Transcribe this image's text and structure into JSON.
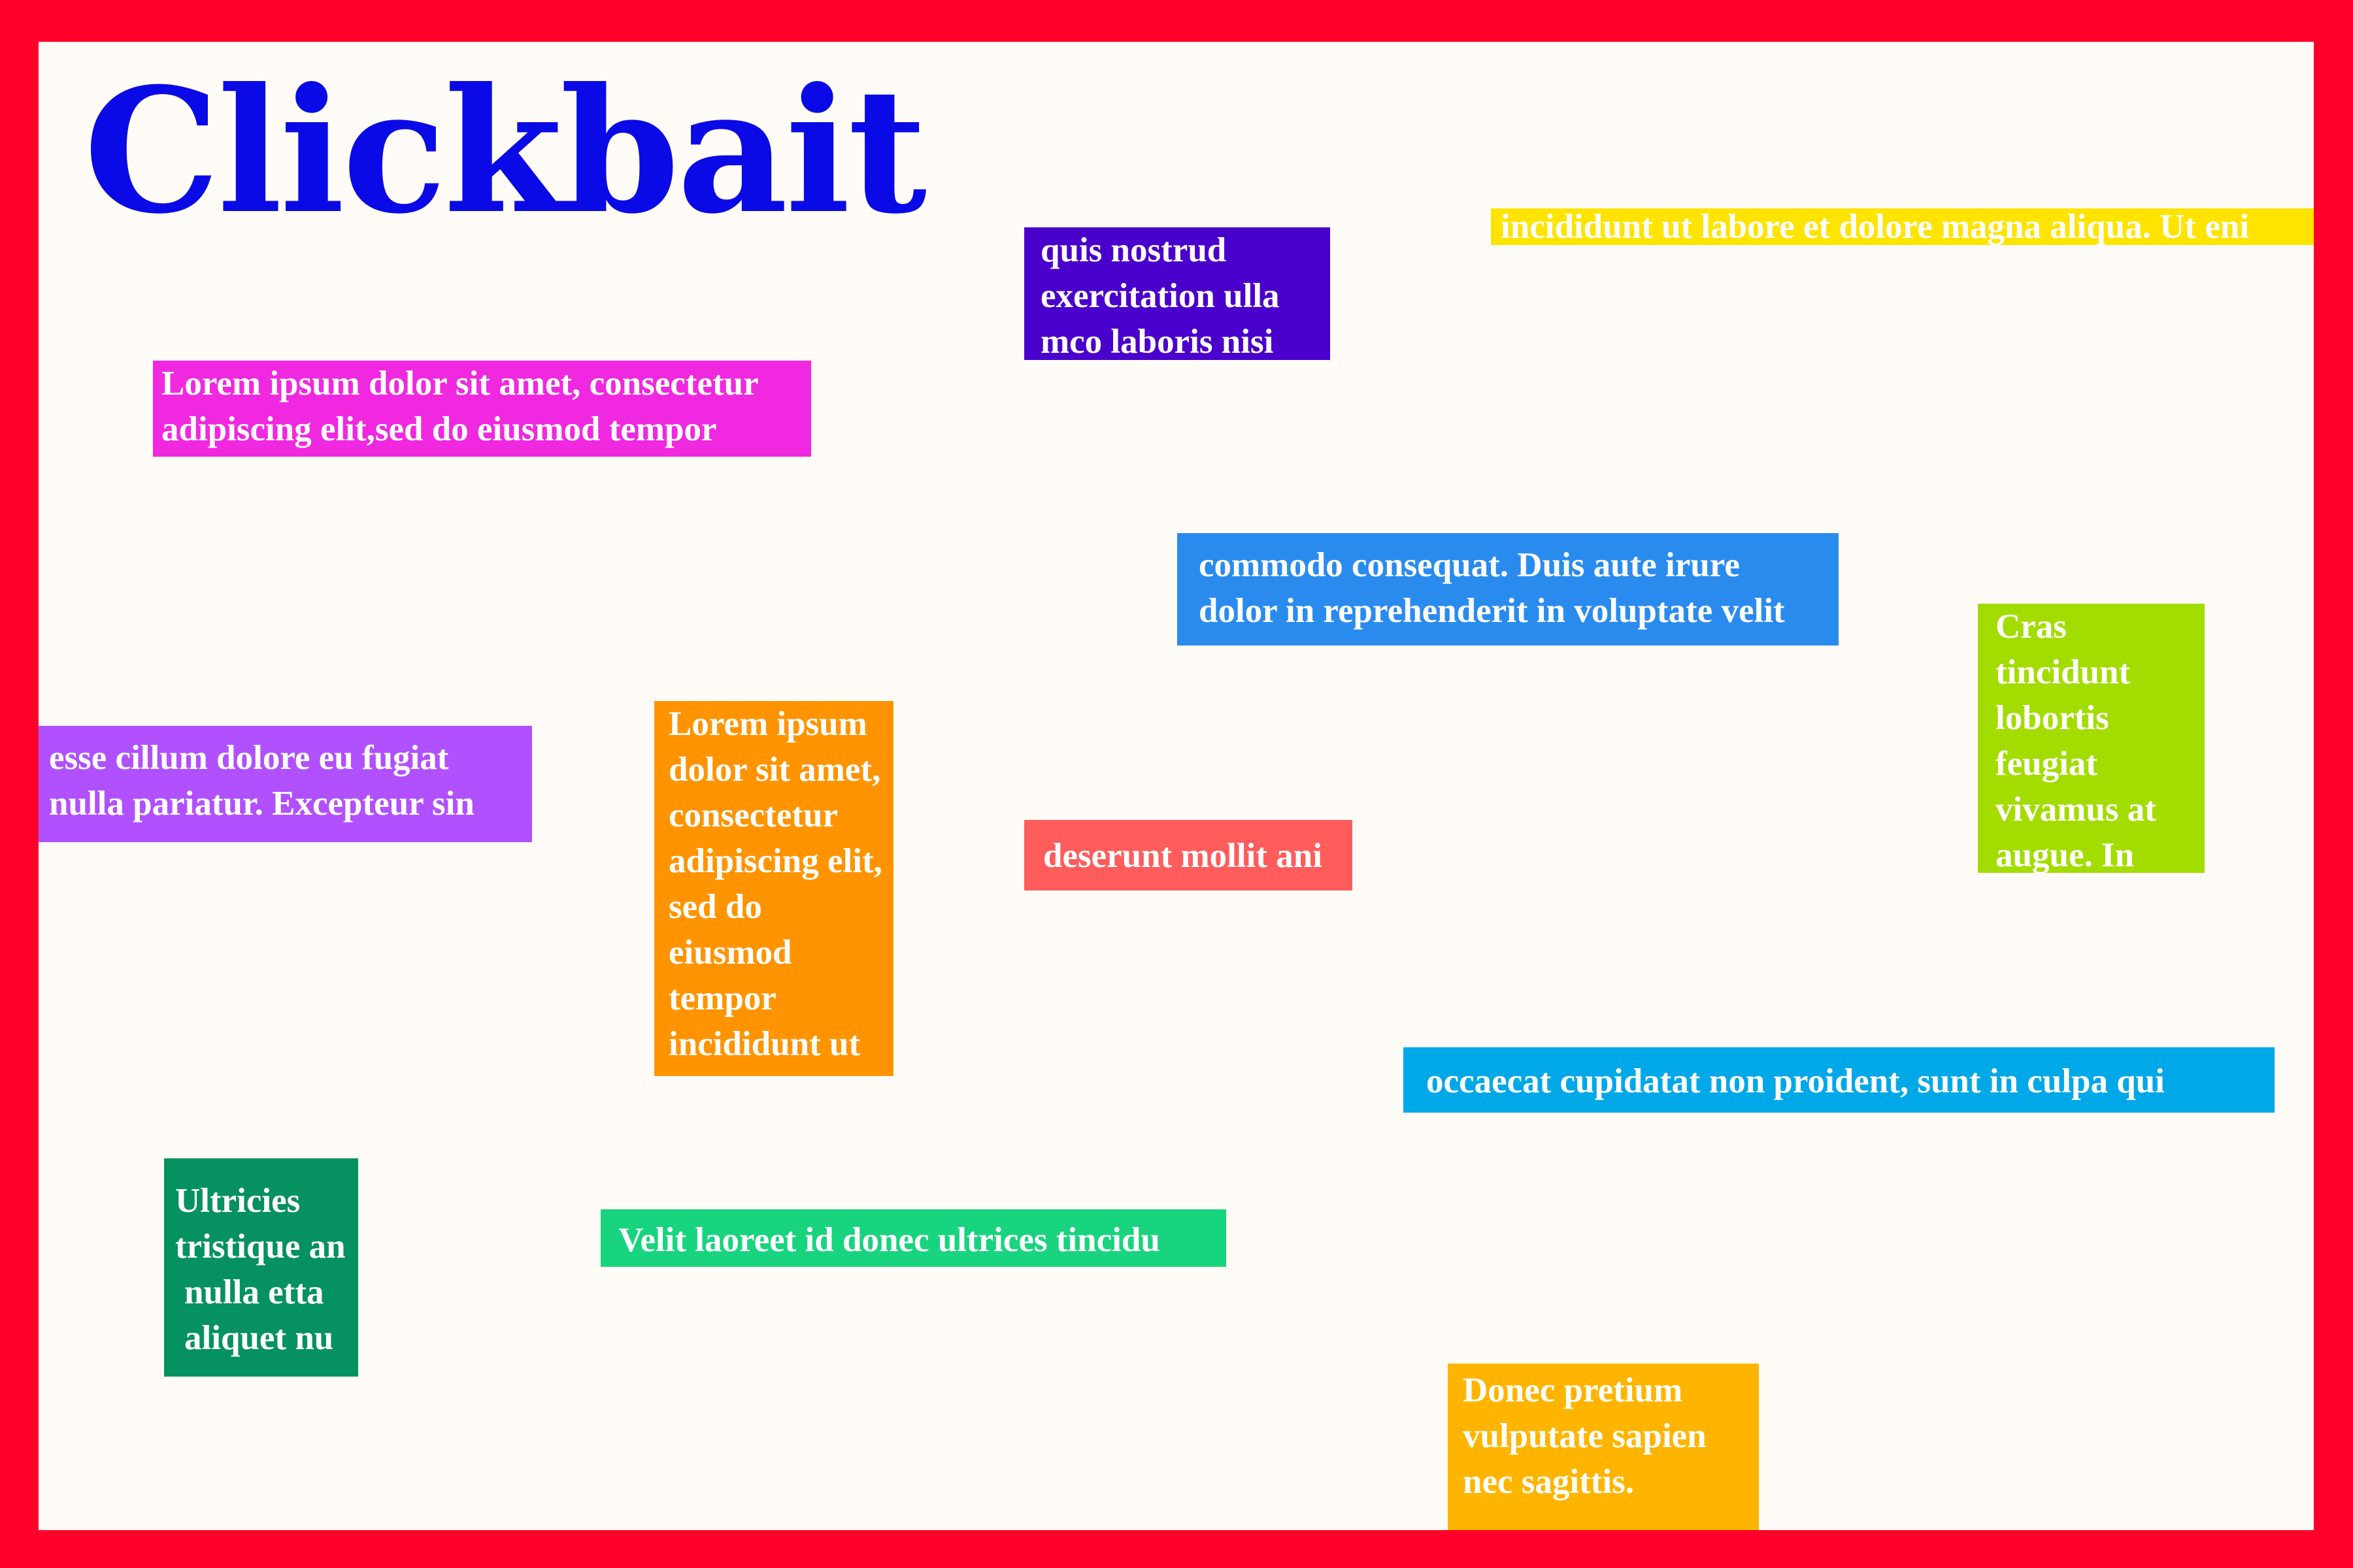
{
  "title": "Clickbait",
  "notes": [
    {
      "id": "note-yellow",
      "color": "#ffe400",
      "lines": [
        "incididunt ut labore et dolore magna aliqua. Ut eni"
      ]
    },
    {
      "id": "note-indigo",
      "color": "#4a00cc",
      "lines": [
        "quis nostrud",
        "exercitation ulla",
        "mco laboris nisi"
      ]
    },
    {
      "id": "note-magenta",
      "color": "#f028e0",
      "lines": [
        "Lorem ipsum dolor sit amet, consectetur",
        "adipiscing elit,sed do eiusmod tempor"
      ]
    },
    {
      "id": "note-blue",
      "color": "#2a8bef",
      "lines": [
        "commodo consequat. Duis aute irure",
        "dolor in reprehenderit in voluptate velit"
      ]
    },
    {
      "id": "note-lime",
      "color": "#a3dd00",
      "lines": [
        "Cras",
        "tincidunt",
        "lobortis",
        "feugiat",
        "vivamus at",
        "augue. In"
      ]
    },
    {
      "id": "note-purple",
      "color": "#b050ff",
      "lines": [
        "esse cillum dolore eu fugiat",
        "nulla pariatur. Excepteur sin"
      ]
    },
    {
      "id": "note-orange",
      "color": "#ff9400",
      "lines": [
        "Lorem ipsum",
        "dolor sit amet,",
        "consectetur",
        "adipiscing elit,",
        "sed do",
        "eiusmod",
        "tempor",
        "incididunt ut"
      ]
    },
    {
      "id": "note-coral",
      "color": "#ff5c5c",
      "lines": [
        "deserunt mollit ani"
      ]
    },
    {
      "id": "note-cyan",
      "color": "#00a8e8",
      "lines": [
        "occaecat cupidatat non proident, sunt in culpa qui"
      ]
    },
    {
      "id": "note-teal",
      "color": "#069160",
      "lines": [
        "Ultricies",
        "tristique an",
        " nulla etta",
        " aliquet nu"
      ]
    },
    {
      "id": "note-green",
      "color": "#18d47e",
      "lines": [
        "Velit laoreet id donec ultrices tincidu"
      ]
    },
    {
      "id": "note-amber",
      "color": "#ffb500",
      "lines": [
        "Donec pretium",
        "vulputate sapien",
        "nec sagittis."
      ]
    }
  ]
}
